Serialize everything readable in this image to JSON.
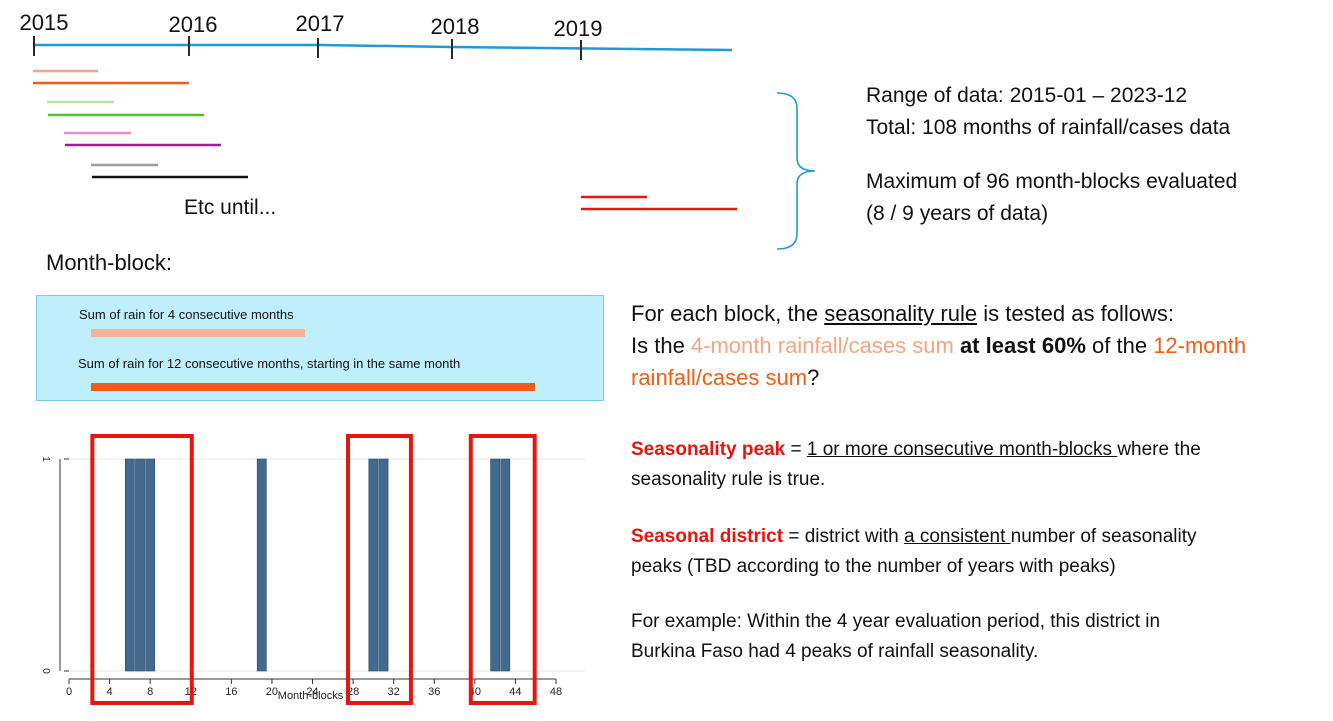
{
  "timeline": {
    "years": [
      "2015",
      "2016",
      "2017",
      "2018",
      "2019"
    ],
    "etc_label": "Etc until...",
    "colors": {
      "axis": "#1f9ad6",
      "salmon": "#f4a582",
      "orange": "#f25c13",
      "light_green": "#b8e2a0",
      "green": "#5cb934",
      "pink": "#f08cc8",
      "purple": "#a61b8f",
      "gray": "#9e9e9e",
      "black": "#111111",
      "red": "#e8150f"
    }
  },
  "info": {
    "range": "Range of data: 2015-01 – 2023-12",
    "total": "Total: 108 months of rainfall/cases data",
    "max_line1": "Maximum of 96 month-blocks evaluated",
    "max_line2": "(8 / 9 years of data)"
  },
  "month_block": {
    "heading": "Month-block:",
    "sum4": "Sum of rain for 4 consecutive months",
    "sum12": "Sum of rain for 12 consecutive months, starting in the same month"
  },
  "rule": {
    "intro_a": "For each block, the ",
    "intro_link": "seasonality rule",
    "intro_b": " is tested as follows:",
    "q_a": "Is the ",
    "q_4month": "4-month rainfall/cases sum",
    "q_b": " ",
    "q_bold": "at least 60%",
    "q_c": " of the ",
    "q_12month_1": "12-month",
    "q_12month_2": "rainfall/cases sum",
    "q_end": "?"
  },
  "peak": {
    "term": "Seasonality peak",
    "eq": " = ",
    "def_ul": "1 or more consecutive month-blocks ",
    "def_rest_1": "where the",
    "def_rest_2": "seasonality rule is true."
  },
  "district": {
    "term": "Seasonal district",
    "def_a": " = district with ",
    "def_ul": "a consistent ",
    "def_b": "number of seasonality",
    "def_c": "peaks (TBD according to the number of years with peaks)"
  },
  "example": {
    "line1": "For example: Within the 4 year evaluation period, this district in",
    "line2": "Burkina Faso had 4 peaks of rainfall seasonality."
  },
  "chart_data": {
    "type": "bar",
    "xlabel": "Month-blocks",
    "ylabel": "",
    "xlim": [
      0,
      48
    ],
    "ylim": [
      0,
      1
    ],
    "x_ticks": [
      0,
      4,
      8,
      12,
      16,
      20,
      24,
      28,
      32,
      36,
      40,
      44,
      48
    ],
    "y_ticks": [
      0,
      1
    ],
    "x": [
      6,
      7,
      8,
      19,
      30,
      31,
      42,
      43
    ],
    "values": [
      1,
      1,
      1,
      1,
      1,
      1,
      1,
      1
    ],
    "bar_color": "#426a8f",
    "highlight_color": "#e8150f"
  }
}
